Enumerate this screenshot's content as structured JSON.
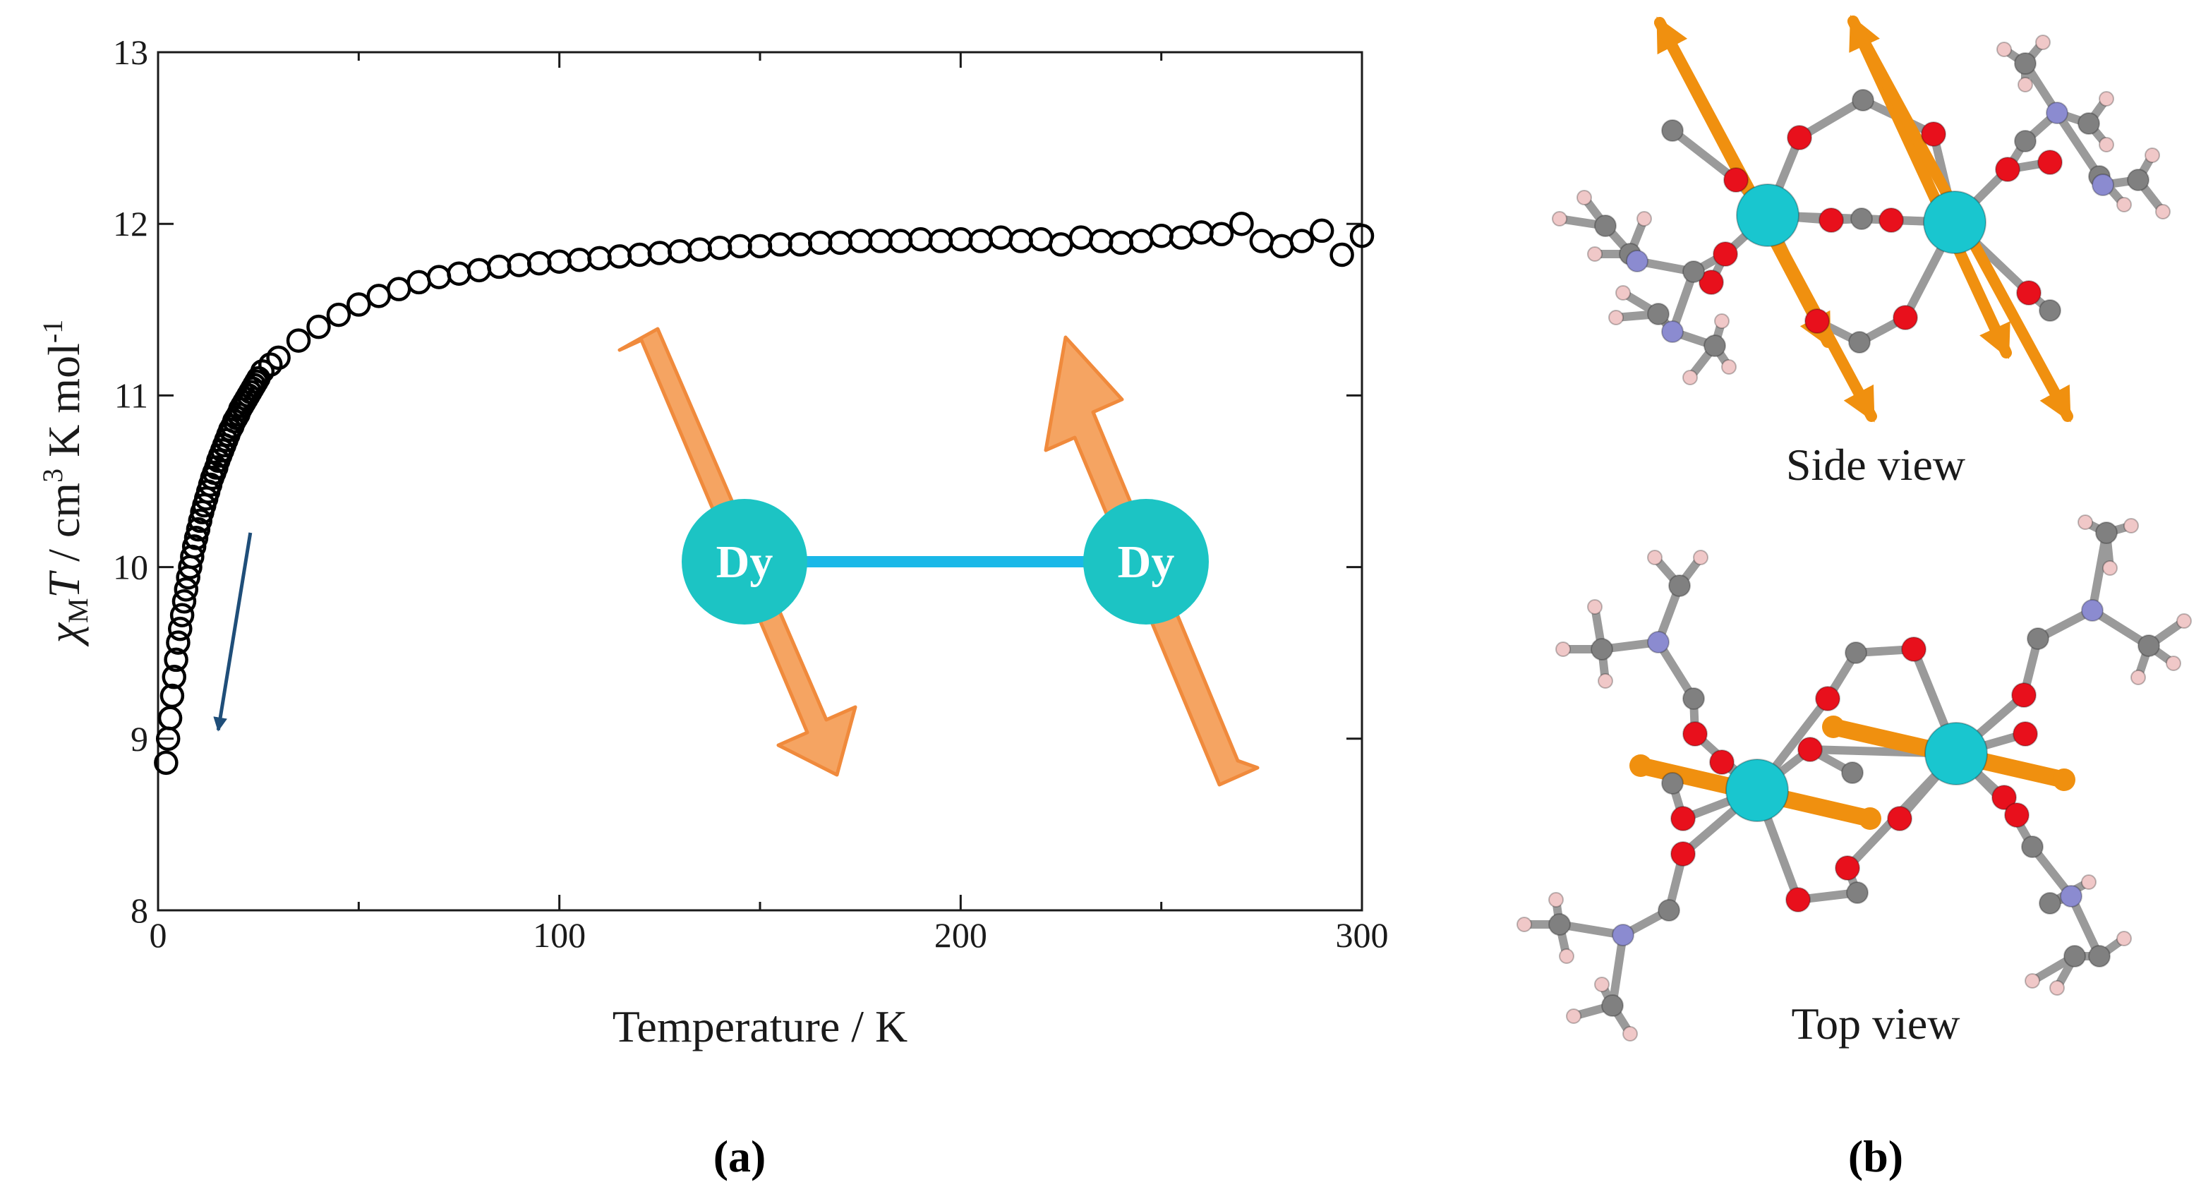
{
  "chart_data": {
    "type": "scatter",
    "title": "",
    "xlabel": "Temperature / K",
    "ylabel": {
      "symbol": "χ",
      "subscript": "M",
      "variable": "T",
      "rest1": " / cm",
      "sup1": "3",
      "rest2": " K mol",
      "sup2": "-1"
    },
    "xlim": [
      0,
      300
    ],
    "ylim": [
      8,
      13
    ],
    "xticks": [
      0,
      100,
      200,
      300
    ],
    "yticks": [
      8,
      9,
      10,
      11,
      12,
      13
    ],
    "grid": false,
    "marker": "open-circle",
    "marker_color": "#000000",
    "annotation": {
      "type": "arrow",
      "from": [
        23,
        10.2
      ],
      "to": [
        15,
        9.05
      ],
      "color": "#1f4e79"
    },
    "series": [
      {
        "name": "",
        "x": [
          2,
          2.5,
          3,
          3.5,
          4,
          4.5,
          5,
          5.5,
          6,
          6.5,
          7,
          7.5,
          8,
          8.5,
          9,
          9.5,
          10,
          10.5,
          11,
          11.5,
          12,
          12.5,
          13,
          13.5,
          14,
          14.5,
          15,
          15.5,
          16,
          16.5,
          17,
          17.5,
          18,
          18.5,
          19,
          19.5,
          20,
          20.5,
          21,
          21.5,
          22,
          22.5,
          23,
          23.5,
          24,
          24.5,
          25,
          26,
          28,
          30,
          35,
          40,
          45,
          50,
          55,
          60,
          65,
          70,
          75,
          80,
          85,
          90,
          95,
          100,
          105,
          110,
          115,
          120,
          125,
          130,
          135,
          140,
          145,
          150,
          155,
          160,
          165,
          170,
          175,
          180,
          185,
          190,
          195,
          200,
          205,
          210,
          215,
          220,
          225,
          230,
          235,
          240,
          245,
          250,
          255,
          260,
          265,
          270,
          275,
          280,
          285,
          290,
          295,
          300
        ],
        "y": [
          8.86,
          9.0,
          9.12,
          9.25,
          9.36,
          9.46,
          9.56,
          9.64,
          9.72,
          9.8,
          9.87,
          9.94,
          10.0,
          10.06,
          10.12,
          10.17,
          10.22,
          10.27,
          10.32,
          10.36,
          10.4,
          10.44,
          10.48,
          10.52,
          10.55,
          10.58,
          10.62,
          10.65,
          10.68,
          10.71,
          10.74,
          10.77,
          10.8,
          10.82,
          10.85,
          10.87,
          10.89,
          10.92,
          10.94,
          10.96,
          10.98,
          11.0,
          11.02,
          11.04,
          11.06,
          11.08,
          11.1,
          11.14,
          11.18,
          11.22,
          11.32,
          11.4,
          11.47,
          11.53,
          11.58,
          11.62,
          11.66,
          11.69,
          11.71,
          11.73,
          11.75,
          11.76,
          11.77,
          11.78,
          11.79,
          11.8,
          11.81,
          11.82,
          11.83,
          11.84,
          11.85,
          11.86,
          11.87,
          11.87,
          11.88,
          11.88,
          11.89,
          11.89,
          11.9,
          11.9,
          11.9,
          11.91,
          11.9,
          11.91,
          11.9,
          11.92,
          11.9,
          11.91,
          11.88,
          11.92,
          11.9,
          11.89,
          11.9,
          11.93,
          11.92,
          11.95,
          11.94,
          12.0,
          11.9,
          11.87,
          11.9,
          11.96,
          11.82,
          11.93
        ]
      }
    ]
  },
  "inset": {
    "atom_label_left": "Dy",
    "atom_label_right": "Dy",
    "bond_color": "#1ab8e8",
    "atom_color": "#1cc4c4",
    "arrow_fill": "#f5a462",
    "arrow_stroke": "#f08a3c"
  },
  "structure": {
    "side_view_label": "Side view",
    "top_view_label": "Top view",
    "atom_colors": {
      "dysprosium": "#19c6cf",
      "oxygen": "#e8101c",
      "carbon": "#808080",
      "nitrogen": "#8b8bd0",
      "hydrogen": "#f0c8c8",
      "moment_arrow": "#f0900f"
    }
  },
  "panels": {
    "a_label": "(a)",
    "b_label": "(b)"
  }
}
